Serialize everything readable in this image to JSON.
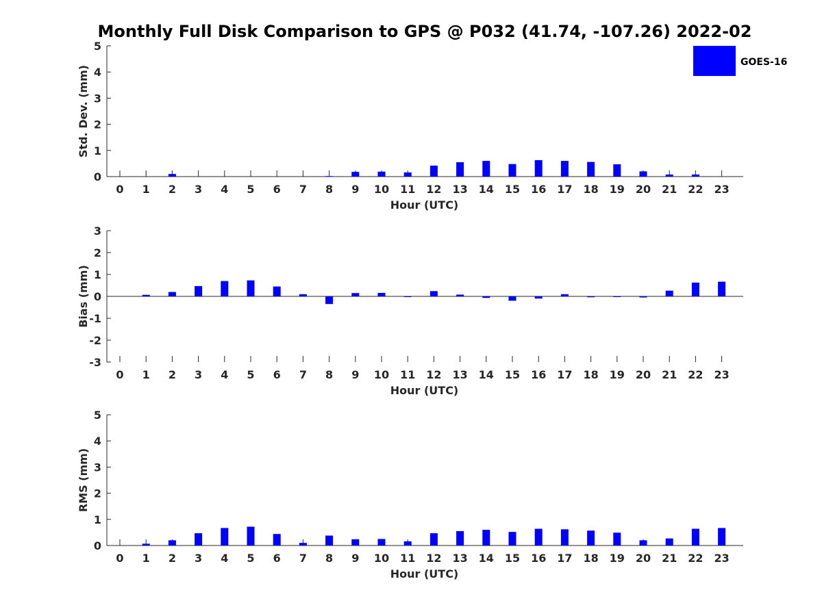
{
  "chart_data": {
    "type": "bar",
    "title": "Monthly Full Disk Comparison to GPS @ P032 (41.74, -107.26) 2022-02",
    "legend": {
      "label": "GOES-16",
      "color": "#0000ff",
      "placement": "top-right"
    },
    "categories": [
      "0",
      "1",
      "2",
      "3",
      "4",
      "5",
      "6",
      "7",
      "8",
      "9",
      "10",
      "11",
      "12",
      "13",
      "14",
      "15",
      "16",
      "17",
      "18",
      "19",
      "20",
      "21",
      "22",
      "23"
    ],
    "panels": [
      {
        "ylabel": "Std. Dev. (mm)",
        "xlabel": "Hour (UTC)",
        "ylim": [
          0,
          5
        ],
        "yticks": [
          0,
          1,
          2,
          3,
          4,
          5
        ],
        "series": [
          {
            "name": "GOES-16",
            "values": [
              null,
              null,
              0.1,
              null,
              null,
              null,
              null,
              null,
              0.02,
              0.18,
              0.19,
              0.16,
              0.42,
              0.55,
              0.6,
              0.48,
              0.63,
              0.6,
              0.56,
              0.47,
              0.2,
              0.08,
              0.08,
              null
            ]
          }
        ]
      },
      {
        "ylabel": "Bias (mm)",
        "xlabel": "Hour (UTC)",
        "ylim": [
          -3,
          3
        ],
        "yticks": [
          -3,
          -2,
          -1,
          0,
          1,
          2,
          3
        ],
        "series": [
          {
            "name": "GOES-16",
            "values": [
              null,
              0.07,
              0.2,
              0.47,
              0.7,
              0.73,
              0.45,
              0.1,
              -0.35,
              0.15,
              0.16,
              -0.02,
              0.24,
              0.08,
              -0.07,
              -0.2,
              -0.1,
              0.1,
              -0.04,
              -0.02,
              -0.05,
              0.26,
              0.63,
              0.67
            ]
          }
        ]
      },
      {
        "ylabel": "RMS (mm)",
        "xlabel": "Hour (UTC)",
        "ylim": [
          0,
          5
        ],
        "yticks": [
          0,
          1,
          2,
          3,
          4,
          5
        ],
        "series": [
          {
            "name": "GOES-16",
            "values": [
              null,
              0.07,
              0.2,
              0.47,
              0.67,
              0.72,
              0.44,
              0.1,
              0.38,
              0.24,
              0.25,
              0.16,
              0.47,
              0.55,
              0.6,
              0.52,
              0.64,
              0.62,
              0.57,
              0.49,
              0.2,
              0.27,
              0.64,
              0.67
            ]
          }
        ]
      }
    ]
  }
}
